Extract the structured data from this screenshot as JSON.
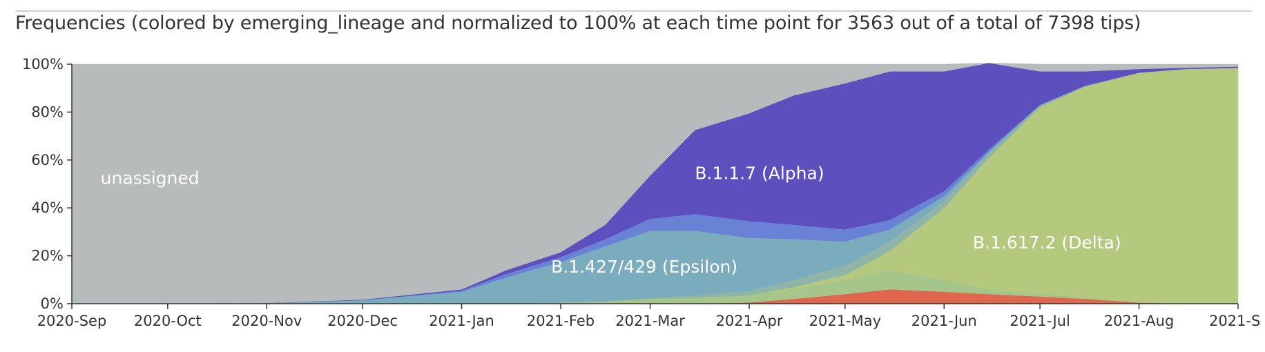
{
  "title": "Frequencies (colored by emerging_lineage and normalized to 100% at each time point for 3563 out of a total of 7398 tips)",
  "chart_data": {
    "type": "area",
    "stacked": true,
    "normalized": true,
    "x": [
      "2020-09-01",
      "2020-10-01",
      "2020-11-01",
      "2020-12-01",
      "2021-01-01",
      "2021-01-15",
      "2021-02-01",
      "2021-02-15",
      "2021-03-01",
      "2021-03-15",
      "2021-04-01",
      "2021-04-15",
      "2021-05-01",
      "2021-05-15",
      "2021-06-01",
      "2021-06-15",
      "2021-07-01",
      "2021-07-15",
      "2021-08-01",
      "2021-08-15",
      "2021-09-01"
    ],
    "x_ticks": [
      "2020-Sep",
      "2020-Oct",
      "2020-Nov",
      "2020-Dec",
      "2021-Jan",
      "2021-Feb",
      "2021-Mar",
      "2021-Apr",
      "2021-May",
      "2021-Jun",
      "2021-Jul",
      "2021-Aug",
      "2021-S"
    ],
    "y_ticks": [
      "0%",
      "20%",
      "40%",
      "60%",
      "80%",
      "100%"
    ],
    "ylim": [
      0,
      100
    ],
    "series": [
      {
        "name": "",
        "color": "#E0674F",
        "values": [
          0,
          0,
          0,
          0,
          0,
          0,
          0,
          0,
          0,
          0,
          0.5,
          2,
          4,
          6,
          5,
          4,
          3,
          2,
          0.5,
          0,
          0
        ]
      },
      {
        "name": "",
        "color": "#A5C58A",
        "values": [
          0,
          0,
          0,
          0,
          0,
          0,
          0.5,
          1,
          2,
          2.5,
          3,
          4,
          6,
          8,
          5,
          2,
          1,
          0.5,
          0,
          0,
          0
        ]
      },
      {
        "name": "",
        "color": "#B4C87E",
        "values": [
          0,
          0,
          0,
          0,
          0,
          0,
          0,
          0,
          0,
          0,
          0,
          1,
          2,
          8,
          30,
          55,
          78,
          88,
          96,
          98,
          98.5
        ]
      },
      {
        "name": "",
        "color": "#8FB4A9",
        "values": [
          0,
          0,
          0,
          0,
          0,
          0,
          0,
          0,
          0.5,
          1,
          2,
          3,
          4,
          4,
          3,
          2,
          1,
          0.5,
          0,
          0,
          0
        ]
      },
      {
        "name": "",
        "color": "#7AACBE",
        "values": [
          0,
          0,
          0.3,
          1.5,
          5,
          11,
          17,
          23,
          28,
          27,
          22,
          17,
          10,
          5,
          2,
          0.5,
          0,
          0,
          0,
          0,
          0
        ]
      },
      {
        "name": "",
        "color": "#6A82D6",
        "values": [
          0,
          0,
          0,
          0,
          0.5,
          1.5,
          2,
          3,
          5,
          7,
          7,
          6,
          5,
          4,
          2,
          1,
          0,
          0,
          0,
          0,
          0
        ]
      },
      {
        "name": "",
        "color": "#5E4FBE",
        "values": [
          0,
          0,
          0,
          0.2,
          0.5,
          1.5,
          2,
          6,
          18,
          35,
          45,
          54,
          61,
          62,
          50,
          36,
          14,
          6,
          1.5,
          0.5,
          0.5
        ]
      },
      {
        "name": "unassigned",
        "color": "#B7BBBC",
        "values": [
          100,
          100,
          99.7,
          98.3,
          94,
          86,
          78.5,
          67,
          46.5,
          27.5,
          20.5,
          13,
          8,
          3,
          3,
          0,
          3,
          3,
          2,
          1.5,
          1
        ]
      }
    ],
    "annotations": [
      {
        "text": "unassigned",
        "x": "2020-09-10",
        "y": 50
      },
      {
        "text": "B.1.1.7 (Alpha)",
        "x": "2021-03-15",
        "y": 52
      },
      {
        "text": "B.1.427/429 (Epsilon)",
        "x": "2021-01-29",
        "y": 13
      },
      {
        "text": "B.1.617.2 (Delta)",
        "x": "2021-06-10",
        "y": 23
      }
    ]
  }
}
